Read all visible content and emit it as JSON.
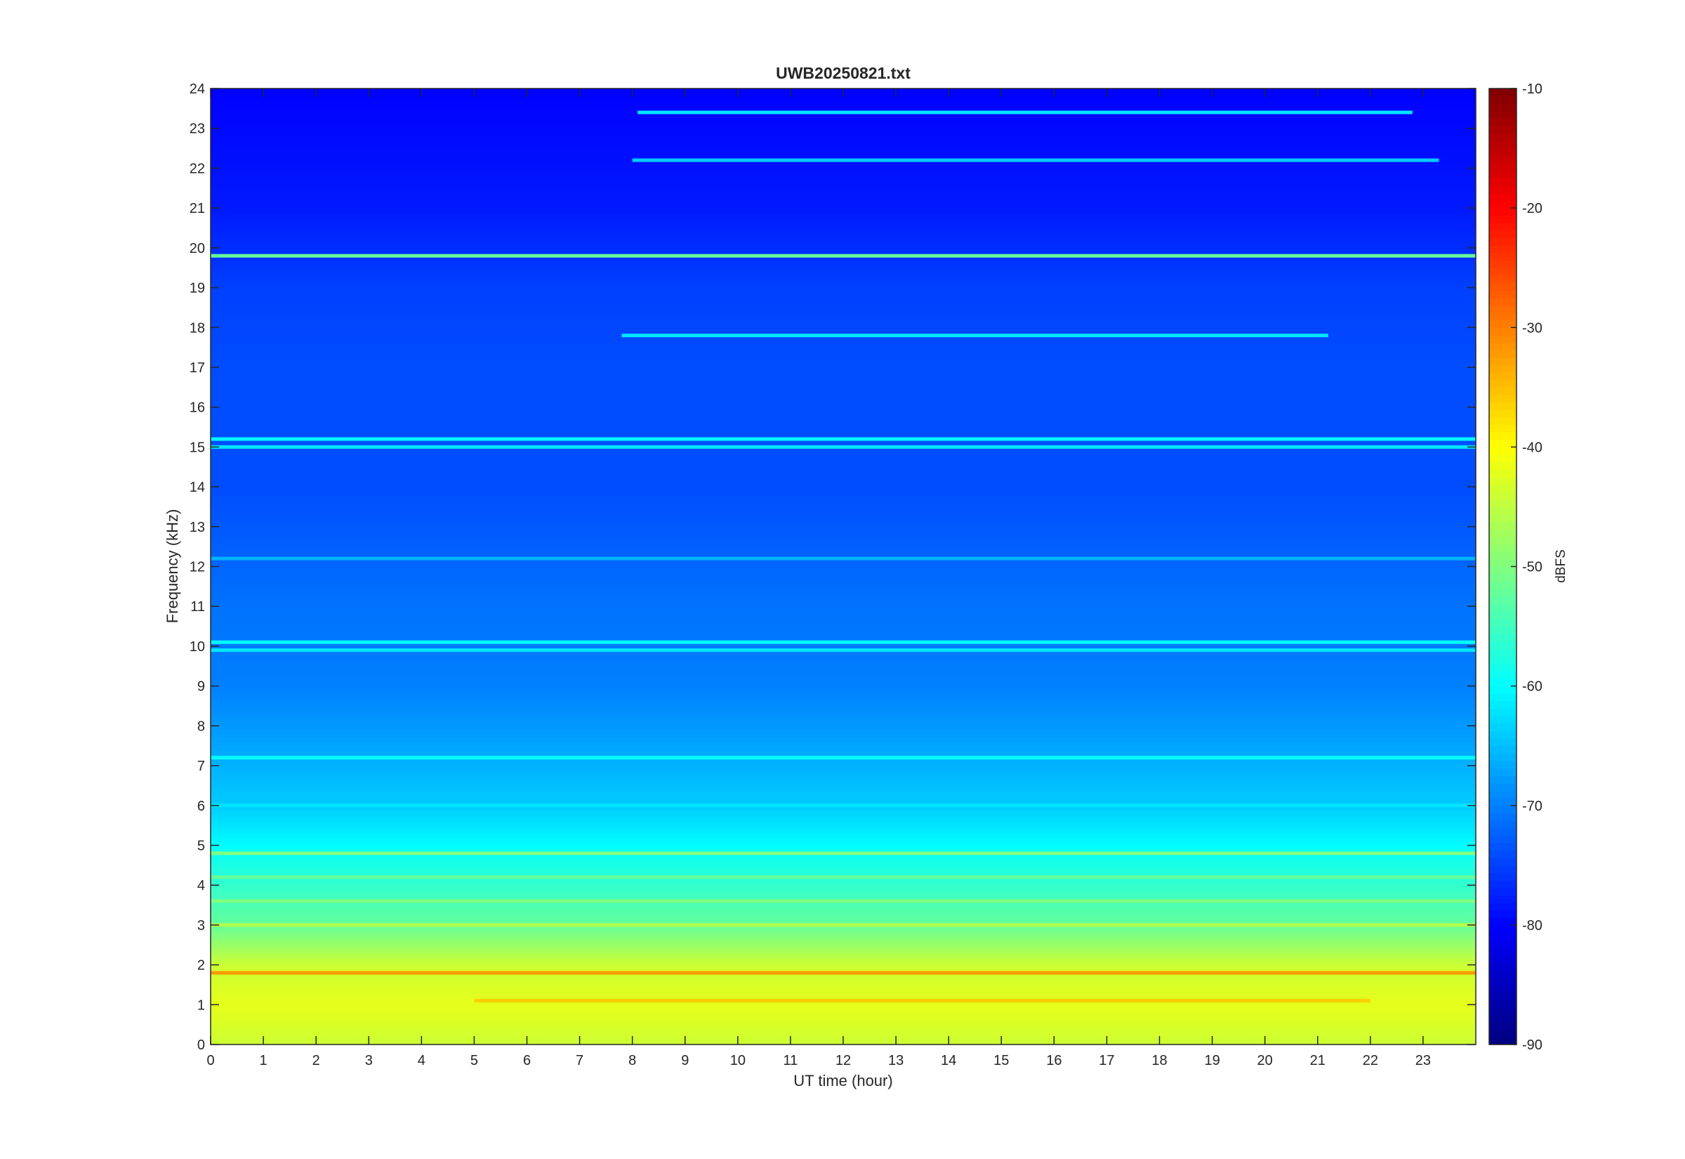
{
  "chart_data": {
    "type": "heatmap",
    "title": "UWB20250821.txt",
    "xlabel": "UT time (hour)",
    "ylabel": "Frequency (kHz)",
    "colorbar_label": "dBFS",
    "colormap": "jet",
    "xlim": [
      0,
      24
    ],
    "ylim": [
      0,
      24
    ],
    "clim": [
      -90,
      -10
    ],
    "x_ticks": [
      "0",
      "1",
      "2",
      "3",
      "4",
      "5",
      "6",
      "7",
      "8",
      "9",
      "10",
      "11",
      "12",
      "13",
      "14",
      "15",
      "16",
      "17",
      "18",
      "19",
      "20",
      "21",
      "22",
      "23"
    ],
    "y_ticks": [
      "0",
      "1",
      "2",
      "3",
      "4",
      "5",
      "6",
      "7",
      "8",
      "9",
      "10",
      "11",
      "12",
      "13",
      "14",
      "15",
      "16",
      "17",
      "18",
      "19",
      "20",
      "21",
      "22",
      "23",
      "24"
    ],
    "colorbar_ticks": [
      "-90",
      "-80",
      "-70",
      "-60",
      "-50",
      "-40",
      "-30",
      "-20",
      "-10"
    ],
    "grid": false,
    "background_by_frequency_khz": [
      {
        "f": 0,
        "dbfs": -44
      },
      {
        "f": 1,
        "dbfs": -42
      },
      {
        "f": 2,
        "dbfs": -44
      },
      {
        "f": 3,
        "dbfs": -52
      },
      {
        "f": 4,
        "dbfs": -56
      },
      {
        "f": 5,
        "dbfs": -60
      },
      {
        "f": 6,
        "dbfs": -64
      },
      {
        "f": 7,
        "dbfs": -66
      },
      {
        "f": 8,
        "dbfs": -68
      },
      {
        "f": 9,
        "dbfs": -70
      },
      {
        "f": 11,
        "dbfs": -71
      },
      {
        "f": 14,
        "dbfs": -74
      },
      {
        "f": 17,
        "dbfs": -74
      },
      {
        "f": 19,
        "dbfs": -75
      },
      {
        "f": 21,
        "dbfs": -78
      },
      {
        "f": 24,
        "dbfs": -80
      }
    ],
    "tonal_lines": [
      {
        "f_khz": 23.4,
        "dbfs": -62,
        "t_start": 8.1,
        "t_end": 22.8
      },
      {
        "f_khz": 22.2,
        "dbfs": -64,
        "t_start": 8.0,
        "t_end": 23.3
      },
      {
        "f_khz": 19.8,
        "dbfs": -52,
        "t_start": 0,
        "t_end": 24
      },
      {
        "f_khz": 17.8,
        "dbfs": -62,
        "t_start": 7.8,
        "t_end": 21.2
      },
      {
        "f_khz": 15.2,
        "dbfs": -60,
        "t_start": 0,
        "t_end": 24
      },
      {
        "f_khz": 15.0,
        "dbfs": -62,
        "t_start": 0,
        "t_end": 24
      },
      {
        "f_khz": 12.2,
        "dbfs": -66,
        "t_start": 0,
        "t_end": 24
      },
      {
        "f_khz": 10.1,
        "dbfs": -60,
        "t_start": 0,
        "t_end": 24
      },
      {
        "f_khz": 9.9,
        "dbfs": -62,
        "t_start": 0,
        "t_end": 24
      },
      {
        "f_khz": 7.2,
        "dbfs": -60,
        "t_start": 0,
        "t_end": 24
      },
      {
        "f_khz": 6.0,
        "dbfs": -62,
        "t_start": 0,
        "t_end": 24
      },
      {
        "f_khz": 4.8,
        "dbfs": -50,
        "t_start": 0,
        "t_end": 24
      },
      {
        "f_khz": 4.2,
        "dbfs": -52,
        "t_start": 0,
        "t_end": 24
      },
      {
        "f_khz": 3.6,
        "dbfs": -50,
        "t_start": 0,
        "t_end": 24
      },
      {
        "f_khz": 3.0,
        "dbfs": -46,
        "t_start": 0,
        "t_end": 24
      },
      {
        "f_khz": 1.8,
        "dbfs": -32,
        "t_start": 0,
        "t_end": 24
      },
      {
        "f_khz": 1.1,
        "dbfs": -36,
        "t_start": 5.0,
        "t_end": 22.0
      }
    ]
  }
}
